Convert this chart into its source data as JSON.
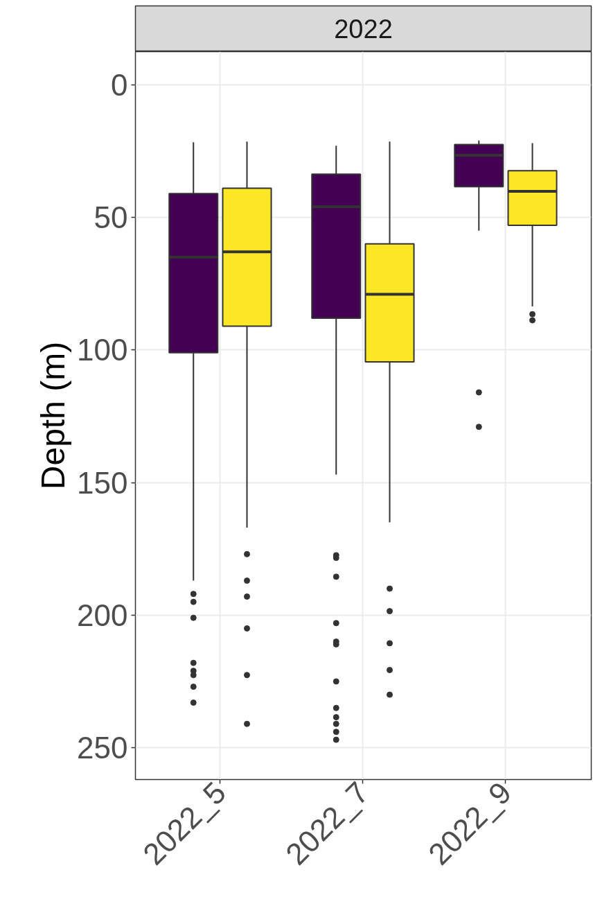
{
  "chart_data": {
    "type": "box",
    "title": "2022",
    "ylabel": "Depth (m)",
    "categories": [
      "2022_5",
      "2022_7",
      "2022_9"
    ],
    "ylim": [
      262,
      -12.5
    ],
    "yticks": [
      0,
      50,
      100,
      150,
      200,
      250
    ],
    "grid": true,
    "series": [
      {
        "color": "#440154",
        "boxes": [
          {
            "low": 21.7,
            "q1": 41,
            "median": 65,
            "q3": 101,
            "high": 187,
            "outliers": [
              192,
              195,
              201,
              218,
              221,
              222.6,
              227,
              233
            ]
          },
          {
            "low": 23,
            "q1": 33.7,
            "median": 46,
            "q3": 88,
            "high": 147,
            "outliers": [
              177.4,
              178.4,
              185.5,
              203,
              210,
              211,
              225,
              235,
              238.5,
              241,
              244,
              247
            ]
          },
          {
            "low": 21,
            "q1": 22.5,
            "median": 26.6,
            "q3": 38.4,
            "high": 55,
            "outliers": [
              116,
              129
            ]
          }
        ]
      },
      {
        "color": "#fde725",
        "boxes": [
          {
            "low": 21.4,
            "q1": 39,
            "median": 63,
            "q3": 91,
            "high": 167,
            "outliers": [
              177,
              187,
              193,
              205,
              222.6,
              241
            ]
          },
          {
            "low": 21.4,
            "q1": 60,
            "median": 79,
            "q3": 104.5,
            "high": 165,
            "outliers": [
              190,
              198.5,
              210.6,
              220.7,
              230
            ]
          },
          {
            "low": 22,
            "q1": 32.4,
            "median": 40.2,
            "q3": 53,
            "high": 83.6,
            "outliers": [
              86.5,
              88.8
            ]
          }
        ]
      }
    ]
  }
}
